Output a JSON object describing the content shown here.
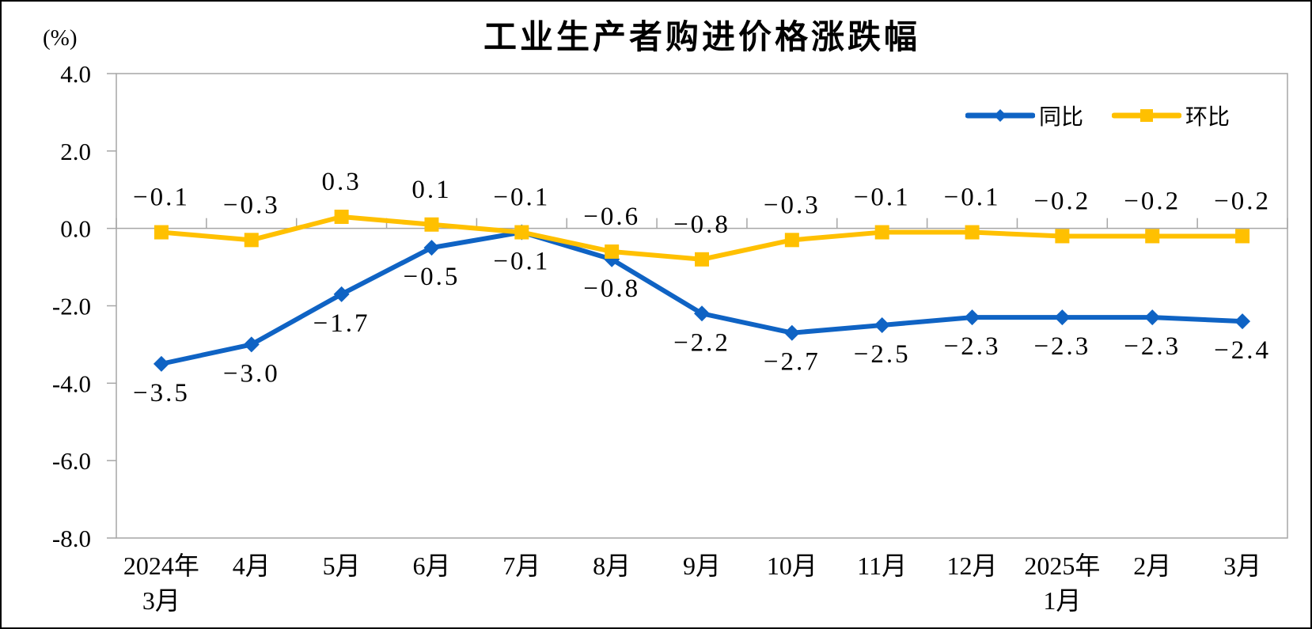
{
  "chart_data": {
    "type": "line",
    "title": "工业生产者购进价格涨跌幅",
    "unit_label": "(%)",
    "categories": [
      [
        "2024年",
        "3月"
      ],
      [
        "4月"
      ],
      [
        "5月"
      ],
      [
        "6月"
      ],
      [
        "7月"
      ],
      [
        "8月"
      ],
      [
        "9月"
      ],
      [
        "10月"
      ],
      [
        "11月"
      ],
      [
        "12月"
      ],
      [
        "2025年",
        "1月"
      ],
      [
        "2月"
      ],
      [
        "3月"
      ]
    ],
    "series": [
      {
        "name": "同比",
        "color": "#0F63C4",
        "marker": "diamond",
        "label_position": "below",
        "values": [
          -3.5,
          -3.0,
          -1.7,
          -0.5,
          -0.1,
          -0.8,
          -2.2,
          -2.7,
          -2.5,
          -2.3,
          -2.3,
          -2.3,
          -2.4
        ]
      },
      {
        "name": "环比",
        "color": "#FFC000",
        "marker": "square",
        "label_position": "above",
        "values": [
          -0.1,
          -0.3,
          0.3,
          0.1,
          -0.1,
          -0.6,
          -0.8,
          -0.3,
          -0.1,
          -0.1,
          -0.2,
          -0.2,
          -0.2
        ]
      }
    ],
    "y_axis": {
      "max": 4.0,
      "min": -8.0,
      "step": 2.0,
      "tick_labels": [
        "4.0",
        "2.0",
        "0.0",
        "-2.0",
        "-4.0",
        "-6.0",
        "-8.0"
      ]
    },
    "legend": {
      "position": "top-right",
      "items": [
        "同比",
        "环比"
      ]
    },
    "grid": "zero-line-only",
    "axis_color": "#A6A6A6",
    "label_color": "#000000"
  }
}
